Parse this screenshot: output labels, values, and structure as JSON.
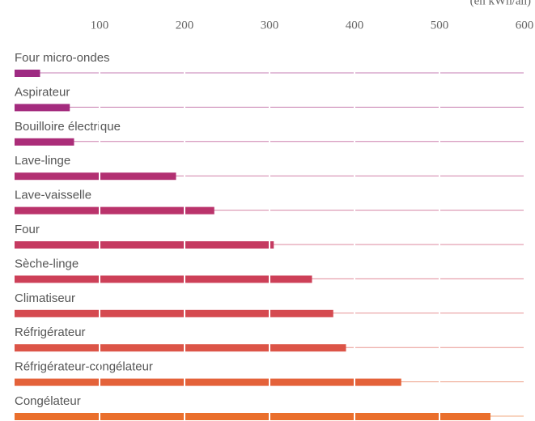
{
  "chart_data": {
    "type": "barh",
    "xlabel": "(en kWh/an)",
    "categories": [
      "Four micro-ondes",
      "Aspirateur",
      "Bouilloire électrique",
      "Lave-linge",
      "Lave-vaisselle",
      "Four",
      "Sèche-linge",
      "Climatiseur",
      "Réfrigérateur",
      "Réfrigérateur-congélateur",
      "Congélateur"
    ],
    "values": [
      30,
      65,
      70,
      190,
      235,
      305,
      350,
      375,
      390,
      455,
      560
    ],
    "colors": [
      "#9e2a82",
      "#a42b7e",
      "#ab2d79",
      "#b23072",
      "#ba336b",
      "#c53a61",
      "#cd4058",
      "#d54a50",
      "#dc5447",
      "#e4623a",
      "#ea6f2c"
    ],
    "xlim": [
      0,
      600
    ],
    "xticks": [
      100,
      200,
      300,
      400,
      500,
      600
    ],
    "grid": true
  }
}
